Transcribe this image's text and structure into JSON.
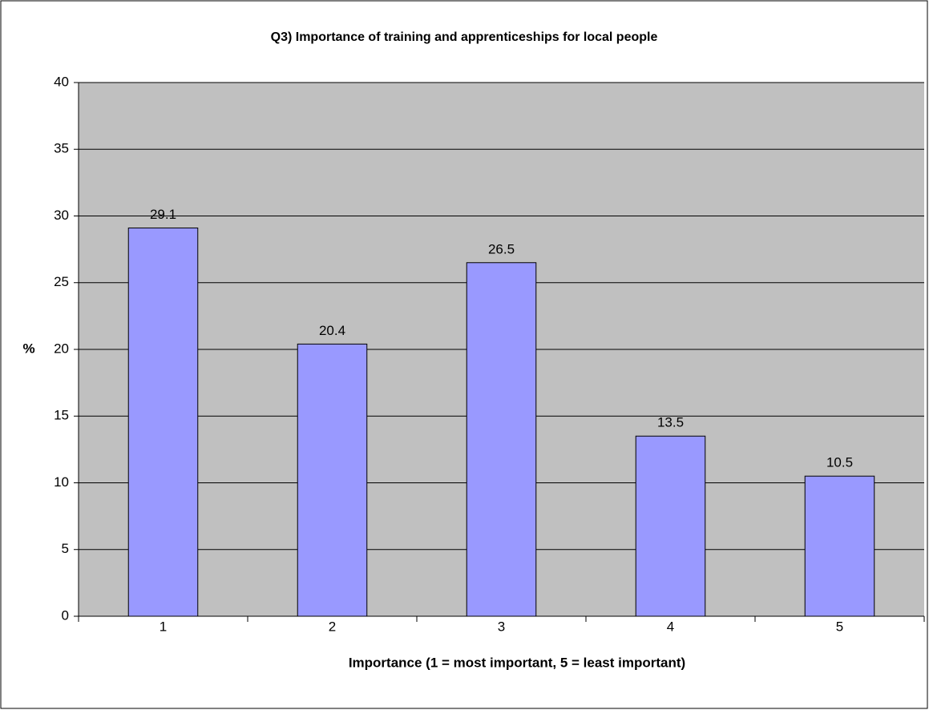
{
  "chart_data": {
    "type": "bar",
    "title": "Q3) Importance of training and apprenticeships for local people",
    "x_label": "Importance (1 = most important, 5 = least important)",
    "y_label": "%",
    "categories": [
      "1",
      "2",
      "3",
      "4",
      "5"
    ],
    "values": [
      29.1,
      20.4,
      26.5,
      13.5,
      10.5
    ],
    "color": "#9999ff",
    "ylim": [
      0,
      40
    ],
    "yticks": [
      0,
      5,
      10,
      15,
      20,
      25,
      30,
      35,
      40
    ],
    "grid": true
  }
}
